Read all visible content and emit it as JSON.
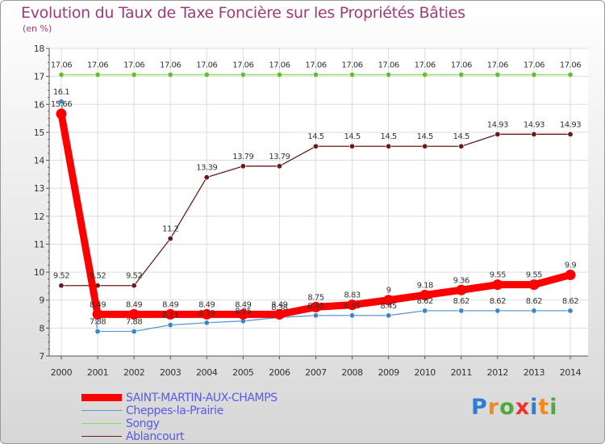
{
  "title": "Evolution du Taux de Taxe Foncière sur les Propriétés Bâties",
  "subtitle": "(en %)",
  "logo": {
    "letters": [
      "P",
      "r",
      "o",
      "x",
      "i",
      "t",
      "i"
    ],
    "colors": [
      "#2a7fd4",
      "#f08a1c",
      "#4fa83a",
      "#e8342a",
      "#2a7fd4",
      "#f08a1c",
      "#4fa83a"
    ]
  },
  "chart_data": {
    "type": "line",
    "title": "Evolution du Taux de Taxe Foncière sur les Propriétés Bâties",
    "ylabel": "(en %)",
    "x": [
      "2000",
      "2001",
      "2002",
      "2003",
      "2004",
      "2005",
      "2006",
      "2007",
      "2008",
      "2009",
      "2010",
      "2011",
      "2012",
      "2013",
      "2014"
    ],
    "ylim": [
      7,
      18
    ],
    "yticks": [
      7,
      8,
      9,
      10,
      11,
      12,
      13,
      14,
      15,
      16,
      17,
      18
    ],
    "series": [
      {
        "name": "Songy",
        "color": "#8fdc5a",
        "marker": "#62c02c",
        "values": [
          17.06,
          17.06,
          17.06,
          17.06,
          17.06,
          17.06,
          17.06,
          17.06,
          17.06,
          17.06,
          17.06,
          17.06,
          17.06,
          17.06,
          17.06
        ],
        "labels": [
          "17.06",
          "17.06",
          "17.06",
          "17.06",
          "17.06",
          "17.06",
          "17.06",
          "17.06",
          "17.06",
          "17.06",
          "17.06",
          "17.06",
          "17.06",
          "17.06",
          "17.06"
        ]
      },
      {
        "name": "Ablancourt",
        "color": "#6b1a1a",
        "marker": "#6b1a1a",
        "values": [
          9.52,
          9.52,
          9.52,
          11.2,
          13.39,
          13.79,
          13.79,
          14.5,
          14.5,
          14.5,
          14.5,
          14.5,
          14.93,
          14.93,
          14.93
        ],
        "labels": [
          "9.52",
          "9.52",
          "9.52",
          "11.2",
          "13.39",
          "13.79",
          "13.79",
          "14.5",
          "14.5",
          "14.5",
          "14.5",
          "14.5",
          "14.93",
          "14.93",
          "14.93"
        ]
      },
      {
        "name": "Cheppes-la-Prairie",
        "color": "#5b9bd5",
        "marker": "#3a86c8",
        "values": [
          16.1,
          7.88,
          7.88,
          8.11,
          8.19,
          8.25,
          8.38,
          8.45,
          8.45,
          8.45,
          8.62,
          8.62,
          8.62,
          8.62,
          8.62
        ],
        "labels": [
          "16.1",
          "7.88",
          "7.88",
          "8.11",
          "8.19",
          "8.25",
          "8.38",
          "8.45",
          "8.45",
          "8.45",
          "8.62",
          "8.62",
          "8.62",
          "8.62",
          "8.62"
        ]
      },
      {
        "name": "SAINT-MARTIN-AUX-CHAMPS",
        "color": "#ff0000",
        "marker": "#ff0000",
        "values": [
          15.66,
          8.49,
          8.49,
          8.49,
          8.49,
          8.49,
          8.49,
          8.75,
          8.83,
          9,
          9.18,
          9.36,
          9.55,
          9.55,
          9.9
        ],
        "labels": [
          "15.66",
          "8.49",
          "8.49",
          "8.49",
          "8.49",
          "8.49",
          "8.49",
          "8.75",
          "8.83",
          "9",
          "9.18",
          "9.36",
          "9.55",
          "9.55",
          "9.9"
        ]
      }
    ],
    "legend": [
      "SAINT-MARTIN-AUX-CHAMPS",
      "Cheppes-la-Prairie",
      "Songy",
      "Ablancourt"
    ]
  }
}
